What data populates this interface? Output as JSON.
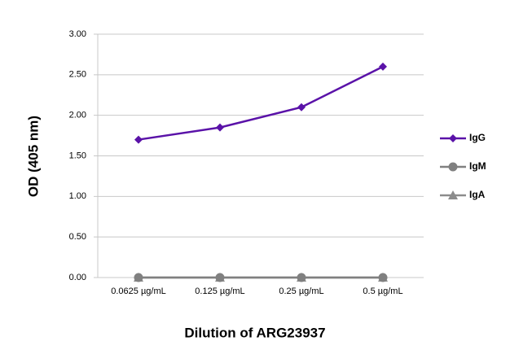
{
  "chart_data": {
    "type": "line",
    "x_label": "Dilution of ARG23937",
    "y_label": "OD (405 nm)",
    "categories": [
      "0.0625 µg/mL",
      "0.125 µg/mL",
      "0.25 µg/mL",
      "0.5 µg/mL"
    ],
    "series": [
      {
        "name": "IgG",
        "color": "#5a12a8",
        "marker": "diamond",
        "values": [
          1.7,
          1.85,
          2.1,
          2.6
        ]
      },
      {
        "name": "IgM",
        "color": "#808080",
        "marker": "circle",
        "values": [
          0,
          0,
          0,
          0
        ]
      },
      {
        "name": "IgA",
        "color": "#8c8c8c",
        "marker": "triangle",
        "values": [
          0,
          0,
          0,
          0
        ]
      }
    ],
    "ylim": [
      0,
      3
    ],
    "yticks": [
      {
        "value": 0,
        "label": "0.00"
      },
      {
        "value": 0.5,
        "label": "0.50"
      },
      {
        "value": 1,
        "label": "1.00"
      },
      {
        "value": 1.5,
        "label": "1.50"
      },
      {
        "value": 2,
        "label": "2.00"
      },
      {
        "value": 2.5,
        "label": "2.50"
      },
      {
        "value": 3,
        "label": "3.00"
      }
    ],
    "grid": true,
    "legend": "right"
  }
}
